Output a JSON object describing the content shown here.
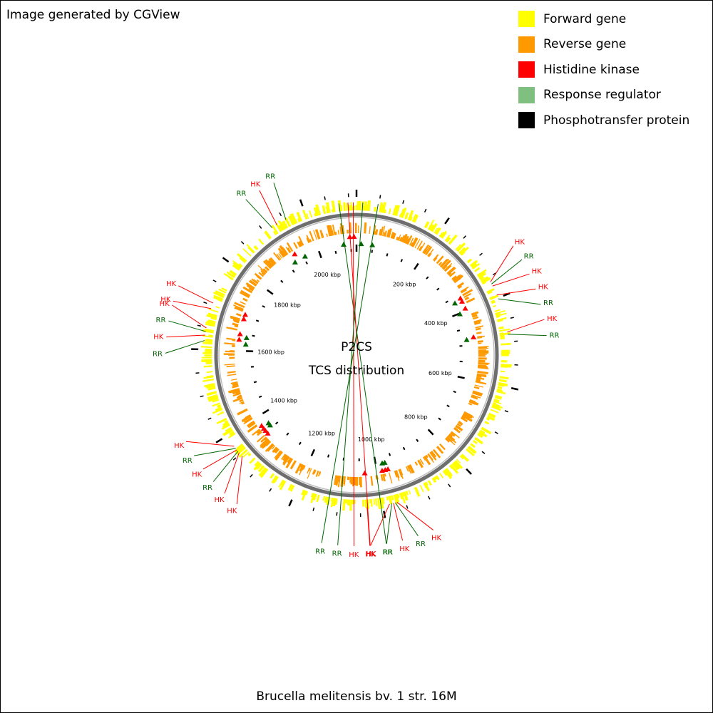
{
  "credit": "Image generated by CGView",
  "legend": [
    {
      "label": "Forward gene",
      "color": "#ffff00"
    },
    {
      "label": "Reverse gene",
      "color": "#ff9900"
    },
    {
      "label": "Histidine kinase",
      "color": "#ff0000"
    },
    {
      "label": "Response regulator",
      "color": "#7fbf7f"
    },
    {
      "label": "Phosphotransfer protein",
      "color": "#000000"
    }
  ],
  "center": {
    "line1": "P2CS",
    "line2": "TCS distribution"
  },
  "organism": "Brucella melitensis bv. 1 str. 16M",
  "genome_length_kbp": 2117,
  "ruler_labels": [
    {
      "kbp": 200,
      "text": "200 kbp"
    },
    {
      "kbp": 400,
      "text": "400 kbp"
    },
    {
      "kbp": 600,
      "text": "600 kbp"
    },
    {
      "kbp": 800,
      "text": "800 kbp"
    },
    {
      "kbp": 1000,
      "text": "1000 kbp"
    },
    {
      "kbp": 1200,
      "text": "1200 kbp"
    },
    {
      "kbp": 1400,
      "text": "1400 kbp"
    },
    {
      "kbp": 1600,
      "text": "1600 kbp"
    },
    {
      "kbp": 1800,
      "text": "1800 kbp"
    },
    {
      "kbp": 2000,
      "text": "2000 kbp"
    }
  ],
  "features": [
    {
      "type": "RR",
      "kbp": 2078
    },
    {
      "type": "HK",
      "kbp": 2098
    },
    {
      "type": "HK",
      "kbp": 2110
    },
    {
      "type": "RR",
      "kbp": 14
    },
    {
      "type": "RR",
      "kbp": 48
    },
    {
      "type": "HK",
      "kbp": 361
    },
    {
      "type": "RR",
      "kbp": 366
    },
    {
      "type": "HK",
      "kbp": 371
    },
    {
      "type": "HK",
      "kbp": 393
    },
    {
      "type": "RR",
      "kbp": 402
    },
    {
      "type": "HK",
      "kbp": 478
    },
    {
      "type": "RR",
      "kbp": 483
    },
    {
      "type": "HK",
      "kbp": 968
    },
    {
      "type": "RR",
      "kbp": 972
    },
    {
      "type": "HK",
      "kbp": 976
    },
    {
      "type": "RR",
      "kbp": 980
    },
    {
      "type": "HK",
      "kbp": 985
    },
    {
      "type": "HK",
      "kbp": 1035
    },
    {
      "type": "HK",
      "kbp": 1344
    },
    {
      "type": "HK",
      "kbp": 1354
    },
    {
      "type": "RR",
      "kbp": 1358
    },
    {
      "type": "HK",
      "kbp": 1362
    },
    {
      "type": "RR",
      "kbp": 1366
    },
    {
      "type": "HK",
      "kbp": 1372
    },
    {
      "type": "RR",
      "kbp": 1620
    },
    {
      "type": "HK",
      "kbp": 1632
    },
    {
      "type": "RR",
      "kbp": 1640
    },
    {
      "type": "HK",
      "kbp": 1648
    },
    {
      "type": "HK",
      "kbp": 1692
    },
    {
      "type": "HK",
      "kbp": 1705
    },
    {
      "type": "RR",
      "kbp": 1920
    },
    {
      "type": "HK",
      "kbp": 1932
    },
    {
      "type": "RR",
      "kbp": 1955
    }
  ],
  "feature_colors": {
    "HK": "#ff0000",
    "RR": "#006600"
  }
}
